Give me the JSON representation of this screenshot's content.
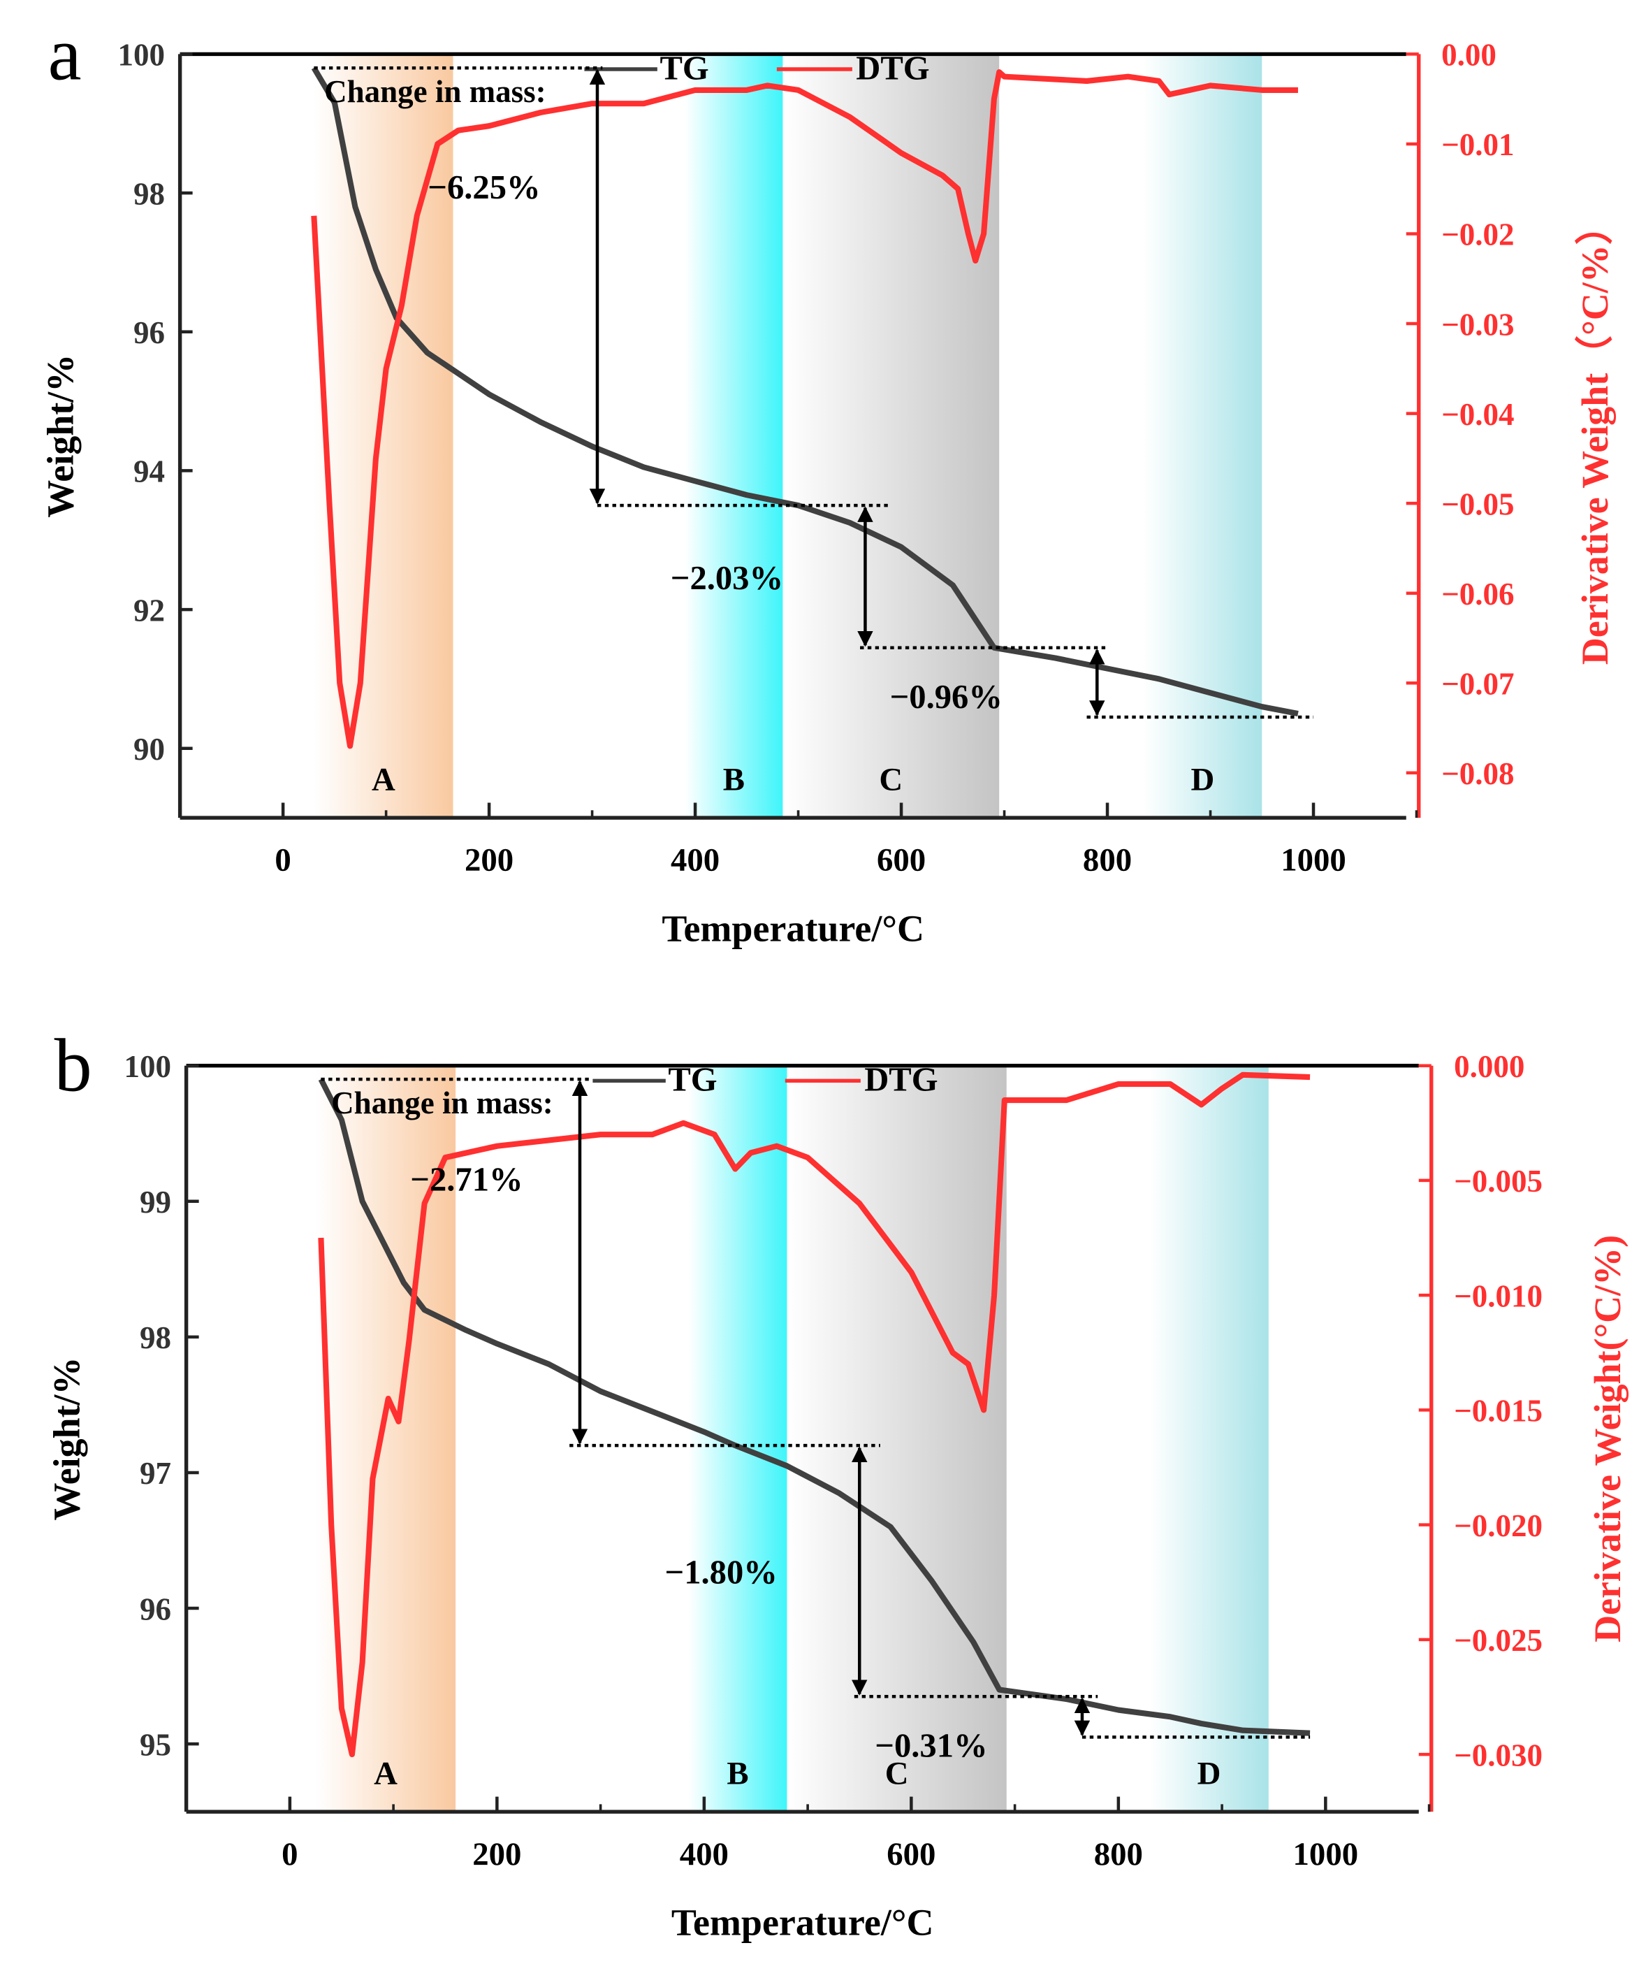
{
  "chart_data": [
    {
      "panel_label": "a",
      "type": "line",
      "xlabel": "Temperature/°C",
      "ylabel": "Weight/%",
      "y2label": "Derivative Weight（°C/%）",
      "xlim": [
        -100,
        1090
      ],
      "ylim": [
        89,
        100
      ],
      "y2lim": [
        -0.085,
        0
      ],
      "xticks": [
        0,
        200,
        400,
        600,
        800,
        1000
      ],
      "yticks": [
        90,
        92,
        94,
        96,
        98,
        100
      ],
      "y2ticks": [
        "0.00",
        "-0.01",
        "-0.02",
        "-0.03",
        "-0.04",
        "-0.05",
        "-0.06",
        "-0.07",
        "-0.08"
      ],
      "legend": [
        "TG",
        "DTG"
      ],
      "legend_position": "top-center",
      "colors": {
        "TG": "#404040",
        "DTG": "#ff3030"
      },
      "annotation_title": "Change in mass:",
      "regions": [
        {
          "label": "A",
          "from": 30,
          "to": 165,
          "color": "#f9c9a0"
        },
        {
          "label": "B",
          "from": 390,
          "to": 485,
          "color": "#3ff5fa"
        },
        {
          "label": "C",
          "from": 485,
          "to": 695,
          "color": "#c4c4c4"
        },
        {
          "label": "D",
          "from": 835,
          "to": 950,
          "color": "#a9e3e8"
        }
      ],
      "mass_changes": [
        {
          "label": "-6.25%",
          "x": 305,
          "from": 99.8,
          "to": 93.5,
          "line_x": [
            30,
            310
          ],
          "line2_x": [
            305,
            590
          ]
        },
        {
          "label": "-2.03%",
          "x": 565,
          "from": 93.5,
          "to": 91.45,
          "line2_x": [
            560,
            800
          ]
        },
        {
          "label": "-0.96%",
          "x": 790,
          "from": 91.45,
          "to": 90.45,
          "line2_x": [
            780,
            1000
          ]
        }
      ],
      "series": [
        {
          "name": "TG",
          "axis": "left",
          "x": [
            30,
            50,
            70,
            90,
            110,
            140,
            170,
            200,
            250,
            300,
            350,
            400,
            450,
            500,
            550,
            600,
            650,
            690,
            750,
            800,
            850,
            900,
            950,
            985
          ],
          "y": [
            99.8,
            99.3,
            97.8,
            96.9,
            96.2,
            95.7,
            95.4,
            95.1,
            94.7,
            94.35,
            94.05,
            93.85,
            93.65,
            93.5,
            93.25,
            92.9,
            92.35,
            91.45,
            91.3,
            91.15,
            91.0,
            90.8,
            90.6,
            90.5
          ]
        },
        {
          "name": "DTG",
          "axis": "right",
          "x": [
            30,
            45,
            55,
            65,
            75,
            90,
            100,
            115,
            130,
            150,
            170,
            200,
            250,
            300,
            350,
            400,
            450,
            470,
            500,
            550,
            600,
            640,
            655,
            665,
            672,
            680,
            690,
            695,
            700,
            780,
            820,
            850,
            860,
            880,
            900,
            950,
            985
          ],
          "y": [
            -0.018,
            -0.05,
            -0.07,
            -0.077,
            -0.07,
            -0.045,
            -0.035,
            -0.028,
            -0.018,
            -0.01,
            -0.0085,
            -0.008,
            -0.0065,
            -0.0055,
            -0.0055,
            -0.004,
            -0.004,
            -0.0035,
            -0.004,
            -0.007,
            -0.011,
            -0.0135,
            -0.015,
            -0.02,
            -0.023,
            -0.02,
            -0.005,
            -0.002,
            -0.0025,
            -0.003,
            -0.0025,
            -0.003,
            -0.0045,
            -0.004,
            -0.0035,
            -0.004,
            -0.004
          ]
        }
      ]
    },
    {
      "panel_label": "b",
      "type": "line",
      "xlabel": "Temperature/°C",
      "ylabel": "Weight/%",
      "y2label": "Derivative Weight(°C/%)",
      "xlim": [
        -100,
        1090
      ],
      "ylim": [
        94.5,
        100
      ],
      "y2lim": [
        -0.0325,
        0
      ],
      "xticks": [
        0,
        200,
        400,
        600,
        800,
        1000
      ],
      "yticks": [
        95,
        96,
        97,
        98,
        99,
        100
      ],
      "y2ticks": [
        "0.000",
        "-0.005",
        "-0.010",
        "-0.015",
        "-0.020",
        "-0.025",
        "-0.030"
      ],
      "legend": [
        "TG",
        "DTG"
      ],
      "legend_position": "top-center",
      "colors": {
        "TG": "#404040",
        "DTG": "#ff3030"
      },
      "annotation_title": "Change in mass:",
      "regions": [
        {
          "label": "A",
          "from": 25,
          "to": 160,
          "color": "#f9c9a0"
        },
        {
          "label": "B",
          "from": 385,
          "to": 480,
          "color": "#3ff5fa"
        },
        {
          "label": "C",
          "from": 480,
          "to": 692,
          "color": "#c4c4c4"
        },
        {
          "label": "D",
          "from": 830,
          "to": 945,
          "color": "#a9e3e8"
        }
      ],
      "mass_changes": [
        {
          "label": "-2.71%",
          "x": 280,
          "from": 99.9,
          "to": 97.2,
          "line_x": [
            30,
            290
          ],
          "line2_x": [
            270,
            570
          ]
        },
        {
          "label": "-1.80%",
          "x": 550,
          "from": 97.2,
          "to": 95.35,
          "line2_x": [
            545,
            780
          ]
        },
        {
          "label": "-0.31%",
          "x": 765,
          "from": 95.35,
          "to": 95.05,
          "line2_x": [
            765,
            985
          ]
        }
      ],
      "series": [
        {
          "name": "TG",
          "axis": "left",
          "x": [
            30,
            50,
            70,
            90,
            110,
            130,
            170,
            200,
            250,
            300,
            350,
            400,
            430,
            480,
            530,
            580,
            620,
            660,
            685,
            750,
            800,
            850,
            880,
            920,
            985
          ],
          "y": [
            99.9,
            99.6,
            99.0,
            98.7,
            98.4,
            98.2,
            98.05,
            97.95,
            97.8,
            97.6,
            97.45,
            97.3,
            97.2,
            97.05,
            96.85,
            96.6,
            96.2,
            95.75,
            95.4,
            95.33,
            95.25,
            95.2,
            95.15,
            95.1,
            95.08
          ]
        },
        {
          "name": "DTG",
          "axis": "right",
          "x": [
            30,
            40,
            50,
            60,
            70,
            80,
            95,
            105,
            115,
            130,
            150,
            200,
            300,
            350,
            380,
            410,
            430,
            445,
            470,
            500,
            550,
            600,
            640,
            655,
            670,
            680,
            690,
            700,
            750,
            800,
            850,
            880,
            900,
            920,
            985
          ],
          "y": [
            -0.0075,
            -0.02,
            -0.028,
            -0.03,
            -0.026,
            -0.018,
            -0.0145,
            -0.0155,
            -0.012,
            -0.006,
            -0.004,
            -0.0035,
            -0.003,
            -0.003,
            -0.0025,
            -0.003,
            -0.0045,
            -0.0038,
            -0.0035,
            -0.004,
            -0.006,
            -0.009,
            -0.0125,
            -0.013,
            -0.015,
            -0.01,
            -0.0015,
            -0.0015,
            -0.0015,
            -0.0008,
            -0.0008,
            -0.0017,
            -0.001,
            -0.0004,
            -0.0005
          ]
        }
      ]
    }
  ]
}
